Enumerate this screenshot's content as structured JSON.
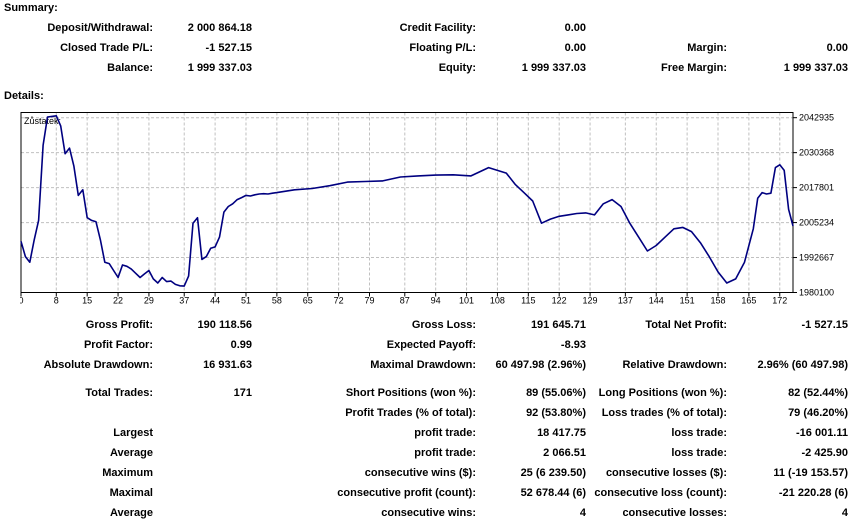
{
  "summary": {
    "title": "Summary:",
    "deposit_label": "Deposit/Withdrawal:",
    "deposit_value": "2 000 864.18",
    "credit_label": "Credit Facility:",
    "credit_value": "0.00",
    "closed_label": "Closed Trade P/L:",
    "closed_value": "-1 527.15",
    "floating_label": "Floating P/L:",
    "floating_value": "0.00",
    "margin_label": "Margin:",
    "margin_value": "0.00",
    "balance_label": "Balance:",
    "balance_value": "1 999 337.03",
    "equity_label": "Equity:",
    "equity_value": "1 999 337.03",
    "free_margin_label": "Free Margin:",
    "free_margin_value": "1 999 337.03"
  },
  "details": {
    "title": "Details:",
    "gross_profit_label": "Gross Profit:",
    "gross_profit_value": "190 118.56",
    "gross_loss_label": "Gross Loss:",
    "gross_loss_value": "191 645.71",
    "total_net_label": "Total Net Profit:",
    "total_net_value": "-1 527.15",
    "profit_factor_label": "Profit Factor:",
    "profit_factor_value": "0.99",
    "expected_payoff_label": "Expected Payoff:",
    "expected_payoff_value": "-8.93",
    "abs_dd_label": "Absolute Drawdown:",
    "abs_dd_value": "16 931.63",
    "max_dd_label": "Maximal Drawdown:",
    "max_dd_value": "60 497.98 (2.96%)",
    "rel_dd_label": "Relative Drawdown:",
    "rel_dd_value": "2.96% (60 497.98)",
    "total_trades_label": "Total Trades:",
    "total_trades_value": "171",
    "short_label": "Short Positions (won %):",
    "short_value": "89 (55.06%)",
    "long_label": "Long Positions (won %):",
    "long_value": "82 (52.44%)",
    "profit_trades_label": "Profit Trades (% of total):",
    "profit_trades_value": "92 (53.80%)",
    "loss_trades_label": "Loss trades (% of total):",
    "loss_trades_value": "79 (46.20%)",
    "largest_label": "Largest",
    "largest_profit_label": "profit trade:",
    "largest_profit_value": "18 417.75",
    "largest_loss_label": "loss trade:",
    "largest_loss_value": "-16 001.11",
    "average_label": "Average",
    "average_profit_label": "profit trade:",
    "average_profit_value": "2 066.51",
    "average_loss_label": "loss trade:",
    "average_loss_value": "-2 425.90",
    "maximum_label": "Maximum",
    "max_cons_wins_label": "consecutive wins ($):",
    "max_cons_wins_value": "25 (6 239.50)",
    "max_cons_losses_label": "consecutive losses ($):",
    "max_cons_losses_value": "11 (-19 153.57)",
    "maximal_label": "Maximal",
    "maximal_profit_label": "consecutive profit (count):",
    "maximal_profit_value": "52 678.44 (6)",
    "maximal_loss_label": "consecutive loss (count):",
    "maximal_loss_value": "-21 220.28 (6)",
    "average2_label": "Average",
    "avg_cons_wins_label": "consecutive wins:",
    "avg_cons_wins_value": "4",
    "avg_cons_losses_label": "consecutive losses:",
    "avg_cons_losses_value": "4"
  },
  "colors": {
    "line": "#000080",
    "grid": "#c0c0c0",
    "frame": "#000000"
  },
  "chart_data": {
    "type": "line",
    "title": "Zůstatek:",
    "x_ticks": [
      0,
      8,
      15,
      22,
      29,
      37,
      44,
      51,
      58,
      65,
      72,
      79,
      87,
      94,
      101,
      108,
      115,
      122,
      129,
      137,
      144,
      151,
      158,
      165,
      172
    ],
    "y_ticks": [
      1980100,
      1992667,
      2005234,
      2017801,
      2030368,
      2042935
    ],
    "xlim": [
      0,
      175
    ],
    "ylim": [
      1980100,
      2044800
    ],
    "grid": true,
    "series": [
      {
        "x": [
          0,
          1,
          2,
          3,
          4,
          5,
          6,
          7,
          8,
          9,
          10,
          11,
          12,
          13,
          14,
          15,
          16,
          17,
          18,
          19,
          20,
          21,
          22,
          23,
          24,
          25,
          26,
          27,
          28,
          29,
          30,
          31,
          32,
          33,
          34,
          35,
          36,
          37,
          38,
          39,
          40,
          41,
          42,
          43,
          44,
          45,
          46,
          47,
          48,
          49,
          50,
          51,
          52,
          53,
          54,
          55,
          56,
          57,
          58,
          62,
          66,
          70,
          74,
          78,
          82,
          86,
          90,
          94,
          98,
          102,
          106,
          110,
          112,
          114,
          116,
          118,
          120,
          122,
          124,
          126,
          128,
          130,
          132,
          134,
          136,
          138,
          140,
          142,
          144,
          146,
          148,
          150,
          152,
          154,
          156,
          158,
          160,
          162,
          164,
          166,
          167,
          168,
          169,
          170,
          171,
          172,
          173,
          174,
          175
        ],
        "y": [
          1998500,
          1993000,
          1991000,
          1999000,
          2006000,
          2033000,
          2043200,
          2043400,
          2043600,
          2040000,
          2030000,
          2032000,
          2025500,
          2015000,
          2017000,
          2007000,
          2006000,
          2005500,
          1999000,
          1991000,
          1990500,
          1988000,
          1985500,
          1990000,
          1989500,
          1988500,
          1987000,
          1985500,
          1986800,
          1988000,
          1985000,
          1983500,
          1985500,
          1984000,
          1984200,
          1983000,
          1982500,
          1982400,
          1986000,
          2005000,
          2007000,
          1992000,
          1993000,
          1996000,
          1996500,
          2000000,
          2009000,
          2011000,
          2012000,
          2013500,
          2014200,
          2015000,
          2014800,
          2015200,
          2015500,
          2015600,
          2015500,
          2015800,
          2016000,
          2017000,
          2017500,
          2018500,
          2019800,
          2020000,
          2020200,
          2021600,
          2022000,
          2022300,
          2022400,
          2022000,
          2025000,
          2023000,
          2019000,
          2016000,
          2013000,
          2005000,
          2006500,
          2007500,
          2008000,
          2008500,
          2008700,
          2008000,
          2012000,
          2013500,
          2011000,
          2005000,
          2000000,
          1995000,
          1997000,
          2000000,
          2003000,
          2003500,
          2002000,
          1998000,
          1993000,
          1987500,
          1983500,
          1985000,
          1991000,
          2003000,
          2014000,
          2016000,
          2015500,
          2015800,
          2025000,
          2026000,
          2024000,
          2010000,
          2004000
        ]
      }
    ]
  }
}
